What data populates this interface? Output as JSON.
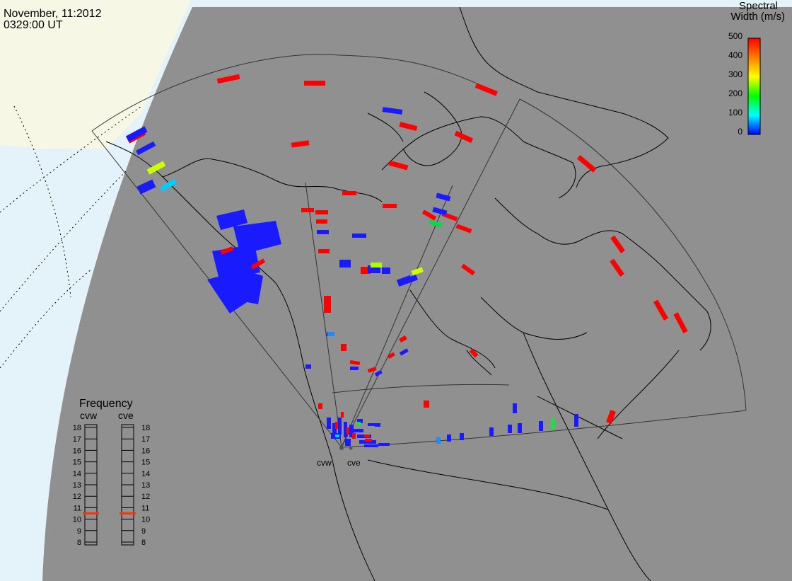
{
  "header": {
    "date": "November, 11:2012",
    "time": "0329:00 UT"
  },
  "colorbar": {
    "title_line1": "Spectral",
    "title_line2": "Width (m/s)",
    "ticks": [
      "500",
      "400",
      "300",
      "200",
      "100",
      "0"
    ],
    "gradient": [
      "#ff0000",
      "#ff7f00",
      "#ffff00",
      "#00ff00",
      "#00ffff",
      "#0000ff"
    ]
  },
  "frequency_panel": {
    "title": "Frequency",
    "radar_labels": [
      "cvw",
      "cve"
    ],
    "ticks": [
      "18",
      "17",
      "16",
      "15",
      "14",
      "13",
      "12",
      "11",
      "10",
      "9",
      "8"
    ],
    "marker_color": "#ff3300",
    "cvw_level": "10.5",
    "cve_level": "10.5"
  },
  "radars": {
    "west_label": "cvw",
    "east_label": "cve"
  },
  "colors": {
    "background_gray": "#909090",
    "night_side": "#909090",
    "day_land": "#f7f7e6",
    "day_ocean": "#e4f2fa",
    "echo_blue": "#1a1aff",
    "echo_red": "#ff0000"
  }
}
